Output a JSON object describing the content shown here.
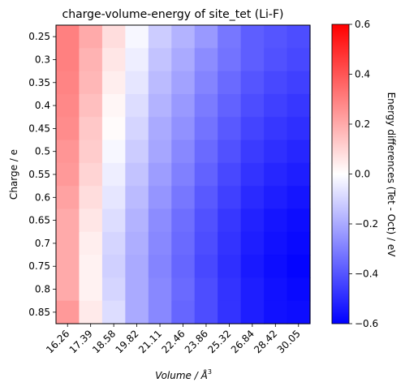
{
  "chart_data": {
    "type": "heatmap",
    "title": "charge-volume-energy of site_tet (Li-F)",
    "xlabel": "Volume / Å",
    "xlabel_sup": "3",
    "ylabel": "Charge / e",
    "colorbar_label": "Energy differences (Tet - Oct) / eV",
    "colormap": "bwr",
    "color_low": "#0000ff",
    "color_mid": "#ffffff",
    "color_high": "#ff0000",
    "vmin": -0.6,
    "vmax": 0.6,
    "colorbar_ticks": [
      "0.6",
      "0.4",
      "0.2",
      "0.0",
      "−0.2",
      "−0.4",
      "−0.6"
    ],
    "colorbar_tick_values": [
      0.6,
      0.4,
      0.2,
      0.0,
      -0.2,
      -0.4,
      -0.6
    ],
    "x_categories": [
      "16.26",
      "17.39",
      "18.58",
      "19.82",
      "21.11",
      "22.46",
      "23.86",
      "25.32",
      "26.84",
      "28.42",
      "30.05"
    ],
    "y_categories": [
      "0.25",
      "0.3",
      "0.35",
      "0.4",
      "0.45",
      "0.5",
      "0.55",
      "0.6",
      "0.65",
      "0.7",
      "0.75",
      "0.8",
      "0.85"
    ],
    "values": [
      [
        0.3,
        0.2,
        0.08,
        -0.02,
        -0.12,
        -0.18,
        -0.24,
        -0.32,
        -0.38,
        -0.4,
        -0.42
      ],
      [
        0.3,
        0.18,
        0.06,
        -0.04,
        -0.14,
        -0.2,
        -0.27,
        -0.33,
        -0.38,
        -0.41,
        -0.43
      ],
      [
        0.29,
        0.17,
        0.04,
        -0.06,
        -0.16,
        -0.22,
        -0.29,
        -0.35,
        -0.4,
        -0.43,
        -0.45
      ],
      [
        0.28,
        0.15,
        0.02,
        -0.08,
        -0.18,
        -0.24,
        -0.31,
        -0.37,
        -0.42,
        -0.45,
        -0.47
      ],
      [
        0.27,
        0.13,
        0.01,
        -0.1,
        -0.2,
        -0.26,
        -0.33,
        -0.39,
        -0.44,
        -0.47,
        -0.49
      ],
      [
        0.25,
        0.12,
        -0.02,
        -0.12,
        -0.21,
        -0.28,
        -0.35,
        -0.41,
        -0.46,
        -0.49,
        -0.51
      ],
      [
        0.24,
        0.1,
        -0.04,
        -0.14,
        -0.23,
        -0.3,
        -0.37,
        -0.43,
        -0.48,
        -0.51,
        -0.53
      ],
      [
        0.22,
        0.08,
        -0.06,
        -0.16,
        -0.25,
        -0.32,
        -0.39,
        -0.45,
        -0.5,
        -0.53,
        -0.55
      ],
      [
        0.2,
        0.06,
        -0.08,
        -0.18,
        -0.27,
        -0.34,
        -0.41,
        -0.47,
        -0.52,
        -0.55,
        -0.57
      ],
      [
        0.2,
        0.04,
        -0.1,
        -0.19,
        -0.28,
        -0.35,
        -0.42,
        -0.48,
        -0.53,
        -0.56,
        -0.58
      ],
      [
        0.2,
        0.03,
        -0.11,
        -0.2,
        -0.29,
        -0.36,
        -0.43,
        -0.49,
        -0.54,
        -0.57,
        -0.59
      ],
      [
        0.2,
        0.03,
        -0.1,
        -0.2,
        -0.28,
        -0.35,
        -0.42,
        -0.48,
        -0.53,
        -0.56,
        -0.58
      ],
      [
        0.24,
        0.05,
        -0.08,
        -0.2,
        -0.28,
        -0.36,
        -0.42,
        -0.48,
        -0.53,
        -0.56,
        -0.57
      ]
    ]
  }
}
